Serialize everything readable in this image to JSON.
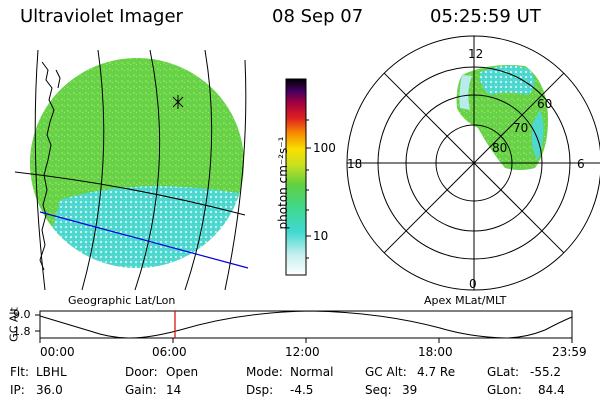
{
  "header": {
    "instrument": "Ultraviolet Imager",
    "date": "08 Sep 07",
    "time": "05:25:59 UT"
  },
  "colorbar": {
    "unit_label": "photon cm⁻²s⁻¹",
    "ticks": [
      "100",
      "10"
    ]
  },
  "geo_panel": {
    "caption": "Geographic Lat/Lon"
  },
  "apex_panel": {
    "caption": "Apex MLat/MLT",
    "mlt_labels": [
      "12",
      "18",
      "6",
      "0"
    ],
    "mlat_labels": [
      "60",
      "70",
      "80"
    ]
  },
  "altitude_plot": {
    "ylabel": "GC Alt",
    "ytick_top": "9.0",
    "ytick_bottom": "1.8",
    "xticks": [
      "00:00",
      "06:00",
      "12:00",
      "18:00",
      "23:59"
    ]
  },
  "status": {
    "flt_label": "Flt:",
    "flt_value": "LBHL",
    "ip_label": "IP:",
    "ip_value": "36.0",
    "door_label": "Door:",
    "door_value": "Open",
    "gain_label": "Gain:",
    "gain_value": "14",
    "mode_label": "Mode:",
    "mode_value": "Normal",
    "dsp_label": "Dsp:",
    "dsp_value": "-4.5",
    "gcalt_label": "GC Alt:",
    "gcalt_value": "4.7 Re",
    "seq_label": "Seq:",
    "seq_value": "39",
    "glat_label": "GLat:",
    "glat_value": "-55.2",
    "glon_label": "GLon:",
    "glon_value": "84.4"
  },
  "colors": {
    "glow_green": "#66d24a",
    "glow_cyan": "#4fd8d0",
    "glow_pale": "#b8ecec",
    "red_marker": "#e00000",
    "blue_track": "#0000dd"
  }
}
